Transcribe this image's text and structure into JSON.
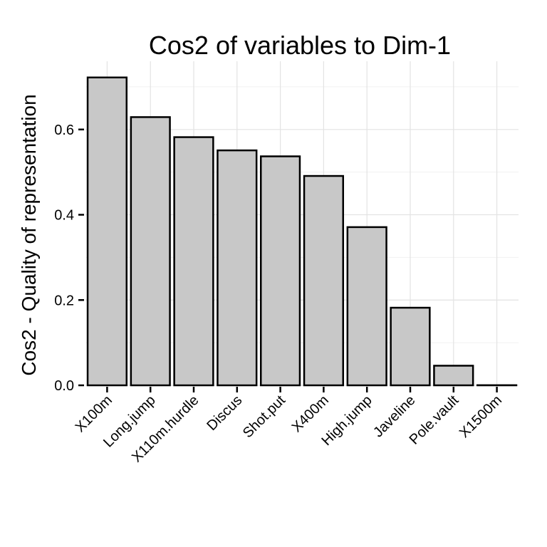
{
  "chart_data": {
    "type": "bar",
    "title": "Cos2 of variables to Dim-1",
    "xlabel": "",
    "ylabel": "Cos2 - Quality of representation",
    "categories": [
      "X100m",
      "Long.jump",
      "X110m.hurdle",
      "Discus",
      "Shot.put",
      "X400m",
      "High.jump",
      "Javeline",
      "Pole.vault",
      "X1500m"
    ],
    "values": [
      0.722,
      0.629,
      0.582,
      0.551,
      0.537,
      0.491,
      0.371,
      0.182,
      0.046,
      0.0003
    ],
    "ylim": [
      0,
      0.76
    ],
    "yticks": [
      0.0,
      0.2,
      0.4,
      0.6
    ],
    "ytick_labels": [
      "0.0",
      "0.2",
      "0.4",
      "0.6"
    ],
    "grid": true,
    "colors": {
      "bar_fill": "#c8c8c8",
      "bar_stroke": "#000000",
      "grid": "#e3e3e3"
    }
  }
}
